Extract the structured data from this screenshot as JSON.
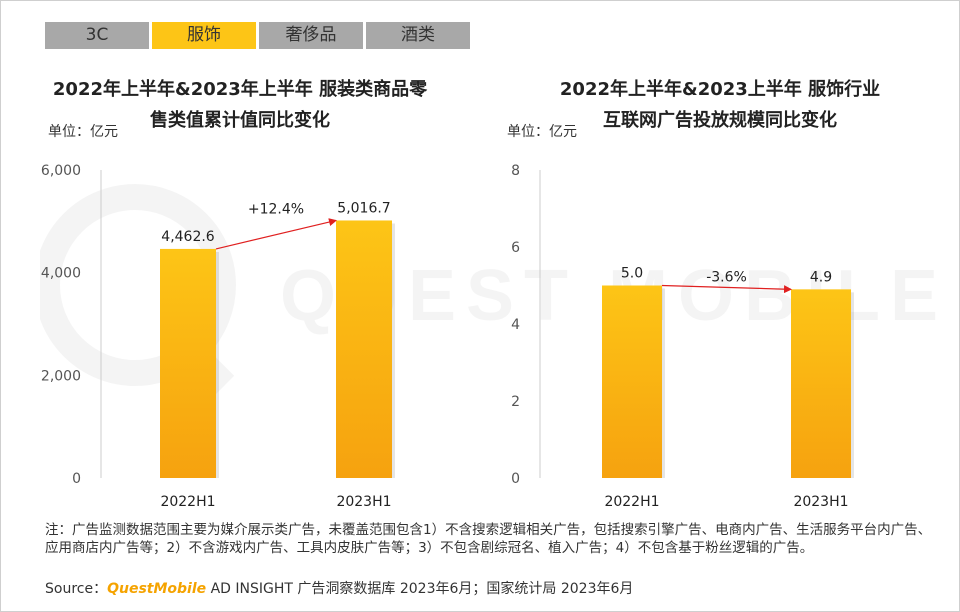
{
  "tabs": [
    {
      "label": "3C",
      "active": false
    },
    {
      "label": "服饰",
      "active": true
    },
    {
      "label": "奢侈品",
      "active": false
    },
    {
      "label": "酒类",
      "active": false
    }
  ],
  "watermark": "QUEST MOBILE",
  "charts": {
    "left": {
      "title_line1": "2022年上半年&2023年上半年 服装类商品零",
      "title_line2": "售类值累计值同比变化",
      "unit": "单位：亿元"
    },
    "right": {
      "title_line1": "2022年上半年&2023上半年 服饰行业",
      "title_line2": "互联网广告投放规模同比变化",
      "unit": "单位：亿元"
    }
  },
  "chart_data": [
    {
      "type": "bar",
      "categories": [
        "2022H1",
        "2023H1"
      ],
      "values": [
        4462.6,
        5016.7
      ],
      "data_labels": [
        "4,462.6",
        "5,016.7"
      ],
      "growth_label": "+12.4%",
      "yticks": [
        "0",
        "2,000",
        "4,000",
        "6,000"
      ],
      "ylim": [
        0,
        6000
      ],
      "color": "#fdc516"
    },
    {
      "type": "bar",
      "categories": [
        "2022H1",
        "2023H1"
      ],
      "values": [
        5.0,
        4.9
      ],
      "data_labels": [
        "5.0",
        "4.9"
      ],
      "growth_label": "-3.6%",
      "yticks": [
        "0",
        "2",
        "4",
        "6",
        "8"
      ],
      "ylim": [
        0,
        8
      ],
      "color": "#fdc516"
    }
  ],
  "footer": {
    "note": "注：广告监测数据范围主要为媒介展示类广告，未覆盖范围包含1）不含搜索逻辑相关广告，包括搜索引擎广告、电商内广告、生活服务平台内广告、应用商店内广告等；2）不含游戏内广告、工具内皮肤广告等；3）不包含剧综冠名、植入广告；4）不包含基于粉丝逻辑的广告。",
    "source_prefix": "Source：",
    "source_brand": "QuestMobile",
    "source_rest": " AD INSIGHT 广告洞察数据库 2023年6月；国家统计局 2023年6月"
  }
}
